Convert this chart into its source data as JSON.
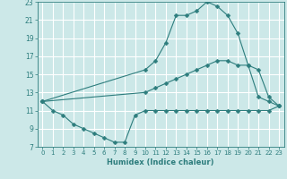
{
  "bg_color": "#cce8e8",
  "grid_color": "#ffffff",
  "line_color": "#2d7d7d",
  "xlabel": "Humidex (Indice chaleur)",
  "xlim": [
    -0.5,
    23.5
  ],
  "ylim": [
    7,
    23
  ],
  "yticks": [
    7,
    9,
    11,
    13,
    15,
    17,
    19,
    21,
    23
  ],
  "xticks": [
    0,
    1,
    2,
    3,
    4,
    5,
    6,
    7,
    8,
    9,
    10,
    11,
    12,
    13,
    14,
    15,
    16,
    17,
    18,
    19,
    20,
    21,
    22,
    23
  ],
  "line1_x": [
    0,
    1,
    2,
    3,
    4,
    5,
    6,
    7,
    8,
    9,
    10,
    11,
    12,
    13,
    14,
    15,
    16,
    17,
    18,
    19,
    20,
    21,
    22,
    23
  ],
  "line1_y": [
    12,
    11,
    10.5,
    9.5,
    9,
    8.5,
    8.0,
    7.5,
    7.5,
    10.5,
    11,
    11,
    11,
    11,
    11,
    11,
    11,
    11,
    11,
    11,
    11,
    11,
    11,
    11.5
  ],
  "line2_x": [
    0,
    10,
    11,
    12,
    13,
    14,
    15,
    16,
    17,
    18,
    19,
    20,
    21,
    22,
    23
  ],
  "line2_y": [
    12,
    15.5,
    16.5,
    18.5,
    21.5,
    21.5,
    22,
    23,
    22.5,
    21.5,
    19.5,
    16,
    12.5,
    12,
    11.5
  ],
  "line3_x": [
    0,
    10,
    11,
    12,
    13,
    14,
    15,
    16,
    17,
    18,
    19,
    20,
    21,
    22,
    23
  ],
  "line3_y": [
    12,
    13,
    13.5,
    14,
    14.5,
    15,
    15.5,
    16,
    16.5,
    16.5,
    16,
    16,
    15.5,
    12.5,
    11.5
  ]
}
